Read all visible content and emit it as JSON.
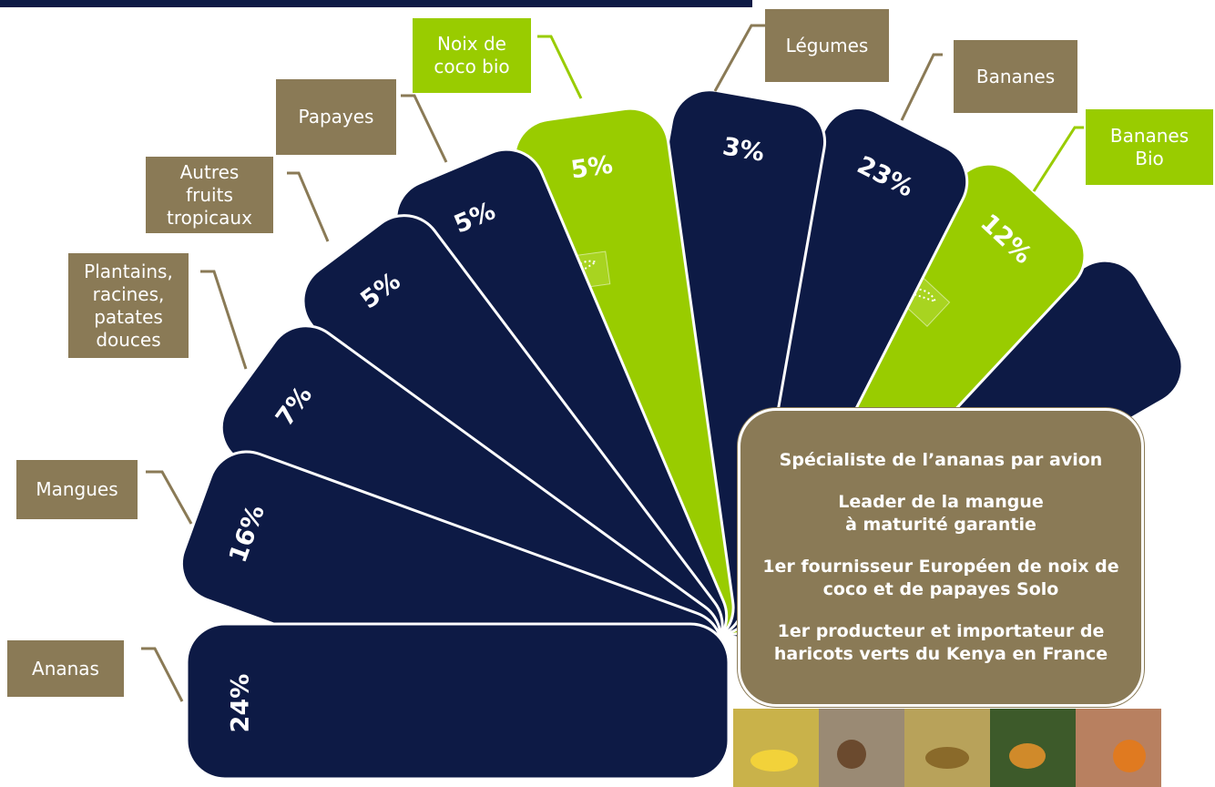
{
  "chart_data": {
    "type": "fan",
    "categories": [
      "Ananas",
      "Mangues",
      "Plantains,\nracines,\npatates\ndouces",
      "Autres\nfruits\ntropicaux",
      "Papayes",
      "Noix de\ncoco bio",
      "Légumes",
      "Bananes",
      "Bananes\nBio"
    ],
    "values": [
      24,
      16,
      7,
      5,
      5,
      5,
      3,
      23,
      12
    ],
    "value_labels": [
      "24%",
      "16%",
      "7%",
      "5%",
      "5%",
      "5%",
      "3%",
      "23%",
      "12%"
    ],
    "colors": [
      "#0d1a45",
      "#0d1a45",
      "#0d1a45",
      "#0d1a45",
      "#0d1a45",
      "#99cc00",
      "#0d1a45",
      "#0d1a45",
      "#99cc00"
    ],
    "label_colors": [
      "#8a7a56",
      "#8a7a56",
      "#8a7a56",
      "#8a7a56",
      "#8a7a56",
      "#99cc00",
      "#8a7a56",
      "#8a7a56",
      "#99cc00"
    ]
  },
  "callout": {
    "paragraphs": [
      [
        "Spécialiste de l’ananas par avion"
      ],
      [
        "Leader de la mangue",
        "à maturité garantie"
      ],
      [
        "1er fournisseur Européen de noix de",
        "coco et de papayes Solo"
      ],
      [
        "1er producteur et importateur de",
        "haricots verts du Kenya en France"
      ]
    ]
  }
}
